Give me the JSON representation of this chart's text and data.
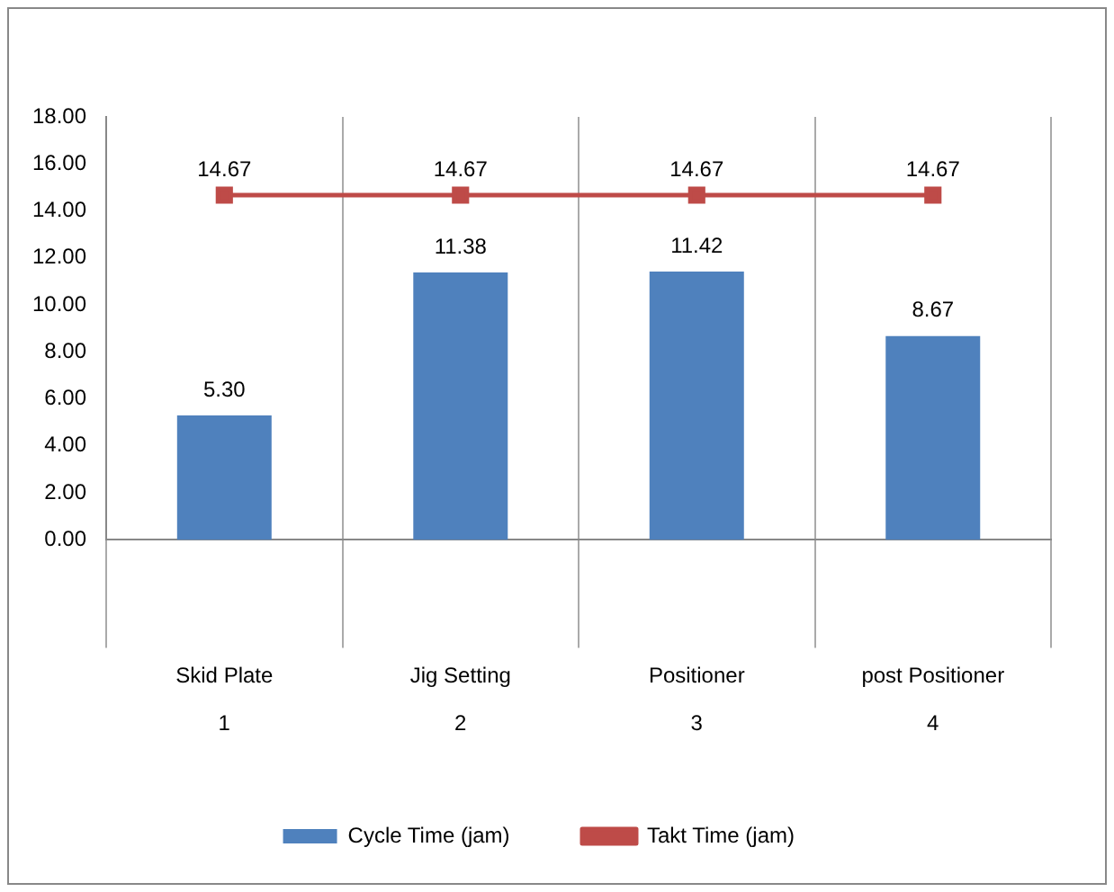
{
  "chart_data": {
    "type": "bar",
    "categories": [
      "Skid Plate\n1",
      "Jig Setting\n2",
      "Positioner\n3",
      "post Positioner\n4"
    ],
    "series": [
      {
        "name": "Cycle Time (jam)",
        "color": "#4f81bd",
        "values": [
          5.3,
          11.38,
          11.42,
          8.67
        ],
        "value_labels": [
          "5.30",
          "11.38",
          "11.42",
          "8.67"
        ]
      },
      {
        "name": "Takt Time (jam)",
        "type": "line",
        "color": "#be4b48",
        "values": [
          14.67,
          14.67,
          14.67,
          14.67
        ],
        "value_labels": [
          "14.67",
          "14.67",
          "14.67",
          "14.67"
        ],
        "marker": "square"
      }
    ],
    "ylim": [
      0,
      18
    ],
    "yticks": [
      {
        "value": 0,
        "label": "0.00"
      },
      {
        "value": 2,
        "label": "2.00"
      },
      {
        "value": 4,
        "label": "4.00"
      },
      {
        "value": 6,
        "label": "6.00"
      },
      {
        "value": 8,
        "label": "8.00"
      },
      {
        "value": 10,
        "label": "10.00"
      },
      {
        "value": 12,
        "label": "12.00"
      },
      {
        "value": 14,
        "label": "14.00"
      },
      {
        "value": 16,
        "label": "16.00"
      },
      {
        "value": 18,
        "label": "18.00"
      }
    ],
    "grid": "x",
    "legend": "bottom"
  }
}
